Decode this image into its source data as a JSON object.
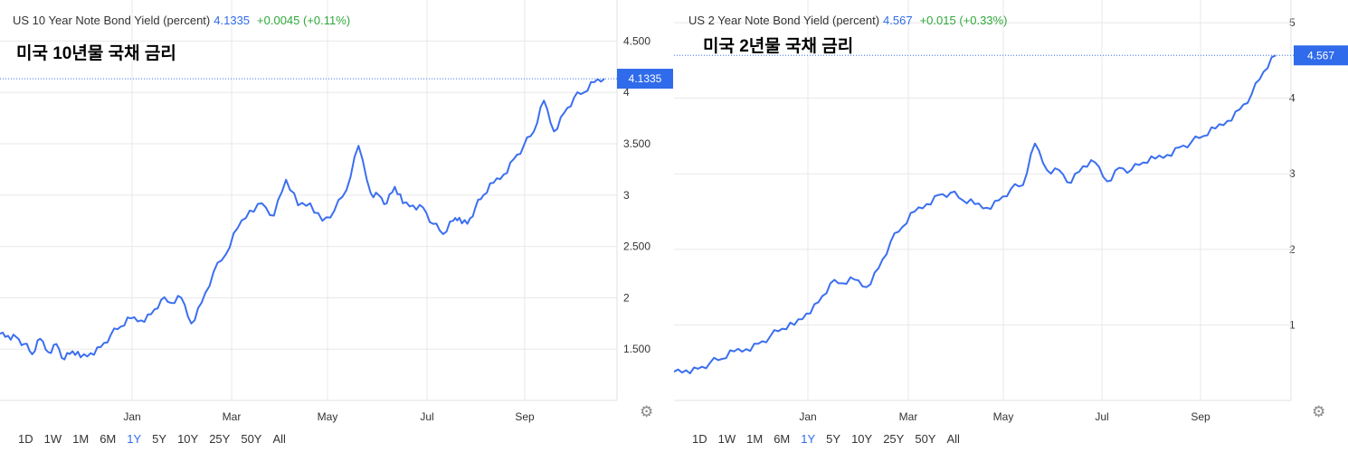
{
  "overlay_labels": [
    "미국 10년물 국채 금리",
    "미국 2년물 국채 금리"
  ],
  "range_buttons": [
    "1D",
    "1W",
    "1M",
    "6M",
    "1Y",
    "5Y",
    "10Y",
    "25Y",
    "50Y",
    "All"
  ],
  "active_range": "1Y",
  "settings_icon": "gear-icon",
  "colors": {
    "line": "#3b6ff0",
    "price_text": "#2f6bea",
    "change_text": "#2fa83a",
    "grid": "#e8e8e8",
    "badge_bg": "#2f6bea",
    "badge_text": "#ffffff"
  },
  "charts": [
    {
      "header": {
        "title": "US 10 Year Note Bond Yield (percent)",
        "price": "4.1335",
        "change": "+0.0045 (+0.11%)"
      },
      "badge": "4.1335"
    },
    {
      "header": {
        "title": "US 2 Year Note Bond Yield (percent)",
        "price": "4.567",
        "change": "+0.015 (+0.33%)"
      },
      "badge": "4.567"
    }
  ],
  "chart_data": [
    {
      "type": "line",
      "title": "US 10 Year Note Bond Yield (percent)",
      "x_ticks": [
        "Jan",
        "Mar",
        "May",
        "Jul",
        "Sep"
      ],
      "y_ticks": [
        "1.500",
        "2",
        "2.500",
        "3",
        "3.500",
        "4",
        "4.500"
      ],
      "ylim": [
        1.0,
        4.9
      ],
      "last_value": 4.1335,
      "x_range": [
        0,
        300
      ],
      "series": [
        {
          "x": [
            0,
            4,
            8,
            12,
            16,
            20,
            24,
            28,
            32,
            36,
            40,
            45,
            50,
            55,
            60,
            65,
            70,
            75,
            80,
            85,
            90,
            95,
            100,
            106,
            112,
            118,
            124,
            130,
            136,
            142,
            148,
            154,
            160,
            166,
            172,
            178,
            184,
            188,
            192,
            196,
            200,
            205,
            210,
            215,
            220,
            225,
            228,
            232,
            236,
            240,
            245,
            250,
            255,
            260,
            265,
            270,
            275,
            280,
            285,
            290,
            295,
            300
          ],
          "y": [
            1.65,
            1.63,
            1.62,
            1.55,
            1.45,
            1.6,
            1.47,
            1.55,
            1.4,
            1.48,
            1.42,
            1.46,
            1.52,
            1.64,
            1.72,
            1.8,
            1.78,
            1.84,
            1.98,
            1.95,
            2.0,
            1.75,
            1.95,
            2.25,
            2.42,
            2.68,
            2.85,
            2.92,
            2.8,
            3.15,
            2.9,
            2.92,
            2.75,
            2.85,
            3.05,
            3.48,
            3.02,
            3.0,
            2.92,
            3.08,
            2.92,
            2.9,
            2.88,
            2.72,
            2.62,
            2.75,
            2.78,
            2.72,
            2.88,
            3.0,
            3.12,
            3.2,
            3.35,
            3.48,
            3.62,
            3.92,
            3.62,
            3.8,
            3.95,
            4.0,
            4.1,
            4.1335
          ]
        }
      ]
    },
    {
      "type": "line",
      "title": "US 2 Year Note Bond Yield (percent)",
      "x_ticks": [
        "Jan",
        "Mar",
        "May",
        "Jul",
        "Sep"
      ],
      "y_ticks": [
        "1",
        "2",
        "3",
        "4",
        "5"
      ],
      "ylim": [
        0,
        5.3
      ],
      "last_value": 4.567,
      "x_range": [
        0,
        300
      ],
      "series": [
        {
          "x": [
            0,
            6,
            12,
            18,
            24,
            30,
            36,
            42,
            48,
            54,
            60,
            66,
            72,
            78,
            84,
            90,
            96,
            102,
            108,
            114,
            120,
            126,
            132,
            138,
            144,
            150,
            156,
            162,
            168,
            174,
            180,
            186,
            192,
            198,
            204,
            210,
            216,
            222,
            228,
            234,
            240,
            246,
            252,
            258,
            264,
            270,
            276,
            282,
            288,
            294,
            300
          ],
          "y": [
            0.38,
            0.4,
            0.42,
            0.5,
            0.55,
            0.65,
            0.68,
            0.75,
            0.85,
            0.95,
            1.0,
            1.15,
            1.3,
            1.55,
            1.55,
            1.6,
            1.5,
            1.75,
            2.1,
            2.3,
            2.5,
            2.6,
            2.72,
            2.75,
            2.65,
            2.6,
            2.55,
            2.65,
            2.8,
            2.85,
            3.4,
            3.05,
            3.05,
            2.88,
            3.1,
            3.15,
            2.9,
            3.08,
            3.05,
            3.15,
            3.2,
            3.25,
            3.35,
            3.42,
            3.5,
            3.6,
            3.7,
            3.85,
            4.05,
            4.35,
            4.567
          ]
        }
      ]
    }
  ]
}
